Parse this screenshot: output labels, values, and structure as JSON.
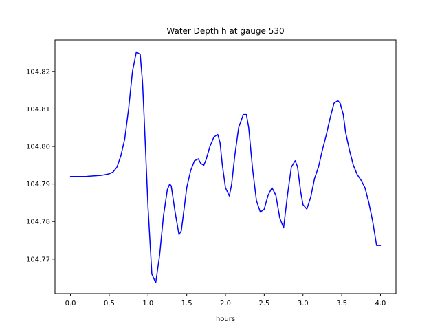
{
  "chart_data": {
    "type": "line",
    "title": "Water Depth h at gauge 530",
    "xlabel": "hours",
    "ylabel": "",
    "xlim": [
      -0.2,
      4.2
    ],
    "ylim": [
      104.7608,
      104.8284
    ],
    "x_ticks": [
      0.0,
      0.5,
      1.0,
      1.5,
      2.0,
      2.5,
      3.0,
      3.5,
      4.0
    ],
    "x_tick_labels": [
      "0.0",
      "0.5",
      "1.0",
      "1.5",
      "2.0",
      "2.5",
      "3.0",
      "3.5",
      "4.0"
    ],
    "y_ticks": [
      104.77,
      104.78,
      104.79,
      104.8,
      104.81,
      104.82
    ],
    "y_tick_labels": [
      "104.77",
      "104.78",
      "104.79",
      "104.80",
      "104.81",
      "104.82"
    ],
    "grid": false,
    "series": [
      {
        "name": "",
        "color": "#0000ff",
        "x": [
          0.0,
          0.2,
          0.4,
          0.5,
          0.55,
          0.6,
          0.65,
          0.7,
          0.75,
          0.8,
          0.85,
          0.9,
          0.93,
          0.95,
          1.0,
          1.05,
          1.1,
          1.15,
          1.2,
          1.25,
          1.28,
          1.3,
          1.35,
          1.4,
          1.43,
          1.47,
          1.5,
          1.55,
          1.6,
          1.65,
          1.68,
          1.72,
          1.75,
          1.8,
          1.85,
          1.9,
          1.93,
          1.96,
          2.0,
          2.05,
          2.08,
          2.12,
          2.17,
          2.23,
          2.27,
          2.3,
          2.35,
          2.4,
          2.45,
          2.5,
          2.55,
          2.6,
          2.65,
          2.7,
          2.75,
          2.8,
          2.85,
          2.9,
          2.93,
          2.97,
          3.0,
          3.05,
          3.1,
          3.15,
          3.2,
          3.25,
          3.3,
          3.35,
          3.4,
          3.45,
          3.48,
          3.52,
          3.55,
          3.6,
          3.65,
          3.7,
          3.75,
          3.8,
          3.85,
          3.9,
          3.95,
          4.0
        ],
        "y": [
          104.792,
          104.792,
          104.7923,
          104.7927,
          104.7932,
          104.7945,
          104.7975,
          104.802,
          104.81,
          104.82,
          104.8252,
          104.8245,
          104.817,
          104.808,
          104.784,
          104.766,
          104.7637,
          104.771,
          104.7815,
          104.7885,
          104.79,
          104.7895,
          104.7825,
          104.7765,
          104.7775,
          104.784,
          104.789,
          104.7935,
          104.7962,
          104.7967,
          104.7955,
          104.795,
          104.7965,
          104.8,
          104.8025,
          104.8032,
          104.801,
          104.795,
          104.789,
          104.7868,
          104.79,
          104.7975,
          104.805,
          104.8085,
          104.8085,
          104.805,
          104.794,
          104.7855,
          104.7825,
          104.7833,
          104.787,
          104.789,
          104.787,
          104.781,
          104.7783,
          104.787,
          104.7945,
          104.7962,
          104.7945,
          104.788,
          104.7845,
          104.7833,
          104.7865,
          104.7915,
          104.7945,
          104.799,
          104.803,
          104.8075,
          104.8115,
          104.8122,
          104.8115,
          104.8085,
          104.8038,
          104.799,
          104.795,
          104.7925,
          104.791,
          104.789,
          104.785,
          104.78,
          104.7736,
          104.7736
        ]
      }
    ]
  }
}
